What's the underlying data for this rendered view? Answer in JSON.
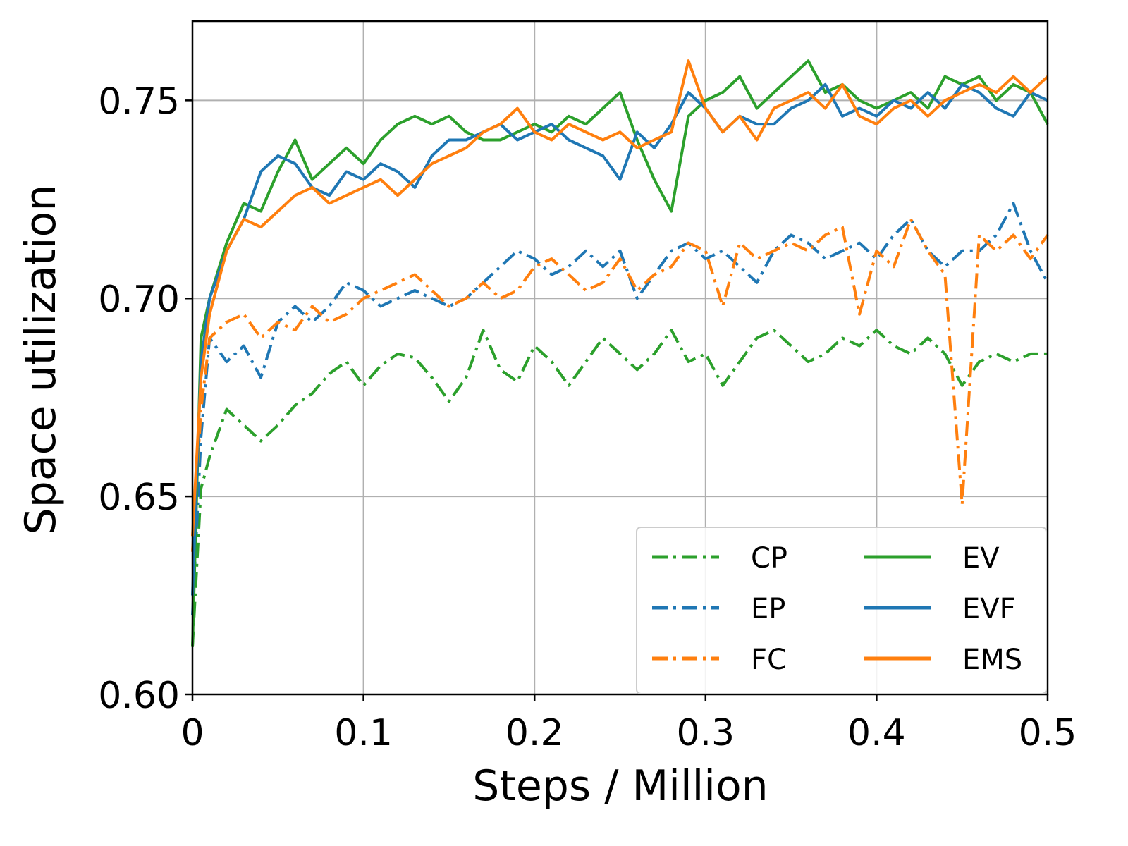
{
  "chart_data": {
    "type": "line",
    "title": "",
    "xlabel": "Steps / Million",
    "ylabel": "Space utilization",
    "xlim": [
      0,
      0.5
    ],
    "ylim": [
      0.6,
      0.77
    ],
    "xticks": [
      0,
      0.1,
      0.2,
      0.3,
      0.4,
      0.5
    ],
    "xtick_labels": [
      "0",
      "0.1",
      "0.2",
      "0.3",
      "0.4",
      "0.5"
    ],
    "yticks": [
      0.6,
      0.65,
      0.7,
      0.75
    ],
    "ytick_labels": [
      "0.60",
      "0.65",
      "0.70",
      "0.75"
    ],
    "grid": true,
    "legend_position": "bottom-right",
    "legend_columns": 2,
    "x": [
      0,
      0.005,
      0.01,
      0.02,
      0.03,
      0.04,
      0.05,
      0.06,
      0.07,
      0.08,
      0.09,
      0.1,
      0.11,
      0.12,
      0.13,
      0.14,
      0.15,
      0.16,
      0.17,
      0.18,
      0.19,
      0.2,
      0.21,
      0.22,
      0.23,
      0.24,
      0.25,
      0.26,
      0.27,
      0.28,
      0.29,
      0.3,
      0.31,
      0.32,
      0.33,
      0.34,
      0.35,
      0.36,
      0.37,
      0.38,
      0.39,
      0.4,
      0.41,
      0.42,
      0.43,
      0.44,
      0.45,
      0.46,
      0.47,
      0.48,
      0.49,
      0.5
    ],
    "series": [
      {
        "name": "CP",
        "style": "dashdot",
        "color": "#2ca02c",
        "values": [
          0.612,
          0.652,
          0.66,
          0.672,
          0.668,
          0.664,
          0.668,
          0.673,
          0.676,
          0.681,
          0.684,
          0.678,
          0.683,
          0.686,
          0.685,
          0.68,
          0.674,
          0.68,
          0.692,
          0.682,
          0.679,
          0.688,
          0.684,
          0.678,
          0.684,
          0.69,
          0.686,
          0.682,
          0.686,
          0.692,
          0.684,
          0.686,
          0.678,
          0.684,
          0.69,
          0.692,
          0.688,
          0.684,
          0.686,
          0.69,
          0.688,
          0.692,
          0.688,
          0.686,
          0.69,
          0.686,
          0.678,
          0.684,
          0.686,
          0.684,
          0.686,
          0.686
        ]
      },
      {
        "name": "EP",
        "style": "dashdot",
        "color": "#1f77b4",
        "values": [
          0.62,
          0.665,
          0.69,
          0.684,
          0.688,
          0.68,
          0.694,
          0.698,
          0.694,
          0.698,
          0.704,
          0.702,
          0.698,
          0.7,
          0.702,
          0.7,
          0.698,
          0.7,
          0.704,
          0.708,
          0.712,
          0.71,
          0.706,
          0.708,
          0.712,
          0.708,
          0.712,
          0.7,
          0.706,
          0.712,
          0.714,
          0.71,
          0.712,
          0.708,
          0.704,
          0.712,
          0.716,
          0.714,
          0.71,
          0.712,
          0.714,
          0.71,
          0.716,
          0.72,
          0.712,
          0.708,
          0.712,
          0.712,
          0.716,
          0.724,
          0.712,
          0.704
        ]
      },
      {
        "name": "FC",
        "style": "dashdot",
        "color": "#ff7f0e",
        "values": [
          0.636,
          0.672,
          0.69,
          0.694,
          0.696,
          0.69,
          0.694,
          0.692,
          0.698,
          0.694,
          0.696,
          0.7,
          0.702,
          0.704,
          0.706,
          0.702,
          0.698,
          0.7,
          0.704,
          0.7,
          0.702,
          0.708,
          0.71,
          0.706,
          0.702,
          0.704,
          0.71,
          0.702,
          0.706,
          0.708,
          0.714,
          0.712,
          0.698,
          0.714,
          0.71,
          0.712,
          0.714,
          0.712,
          0.716,
          0.718,
          0.696,
          0.712,
          0.708,
          0.72,
          0.712,
          0.706,
          0.648,
          0.716,
          0.712,
          0.716,
          0.71,
          0.716
        ]
      },
      {
        "name": "EV",
        "style": "solid",
        "color": "#2ca02c",
        "values": [
          0.612,
          0.69,
          0.7,
          0.714,
          0.724,
          0.722,
          0.732,
          0.74,
          0.73,
          0.734,
          0.738,
          0.734,
          0.74,
          0.744,
          0.746,
          0.744,
          0.746,
          0.742,
          0.74,
          0.74,
          0.742,
          0.744,
          0.742,
          0.746,
          0.744,
          0.748,
          0.752,
          0.74,
          0.73,
          0.722,
          0.746,
          0.75,
          0.752,
          0.756,
          0.748,
          0.752,
          0.756,
          0.76,
          0.752,
          0.754,
          0.75,
          0.748,
          0.75,
          0.752,
          0.748,
          0.756,
          0.754,
          0.756,
          0.75,
          0.754,
          0.752,
          0.744
        ]
      },
      {
        "name": "EVF",
        "style": "solid",
        "color": "#1f77b4",
        "values": [
          0.625,
          0.684,
          0.7,
          0.712,
          0.72,
          0.732,
          0.736,
          0.734,
          0.728,
          0.726,
          0.732,
          0.73,
          0.734,
          0.732,
          0.728,
          0.736,
          0.74,
          0.74,
          0.742,
          0.744,
          0.74,
          0.742,
          0.744,
          0.74,
          0.738,
          0.736,
          0.73,
          0.742,
          0.738,
          0.744,
          0.752,
          0.748,
          0.742,
          0.746,
          0.744,
          0.744,
          0.748,
          0.75,
          0.754,
          0.746,
          0.748,
          0.746,
          0.75,
          0.748,
          0.752,
          0.748,
          0.754,
          0.752,
          0.748,
          0.746,
          0.752,
          0.75
        ]
      },
      {
        "name": "EMS",
        "style": "solid",
        "color": "#ff7f0e",
        "values": [
          0.64,
          0.68,
          0.696,
          0.712,
          0.72,
          0.718,
          0.722,
          0.726,
          0.728,
          0.724,
          0.726,
          0.728,
          0.73,
          0.726,
          0.73,
          0.734,
          0.736,
          0.738,
          0.742,
          0.744,
          0.748,
          0.742,
          0.74,
          0.744,
          0.742,
          0.74,
          0.742,
          0.738,
          0.74,
          0.742,
          0.76,
          0.748,
          0.742,
          0.746,
          0.74,
          0.748,
          0.75,
          0.752,
          0.748,
          0.754,
          0.746,
          0.744,
          0.748,
          0.75,
          0.746,
          0.75,
          0.752,
          0.754,
          0.752,
          0.756,
          0.752,
          0.756
        ]
      }
    ]
  }
}
